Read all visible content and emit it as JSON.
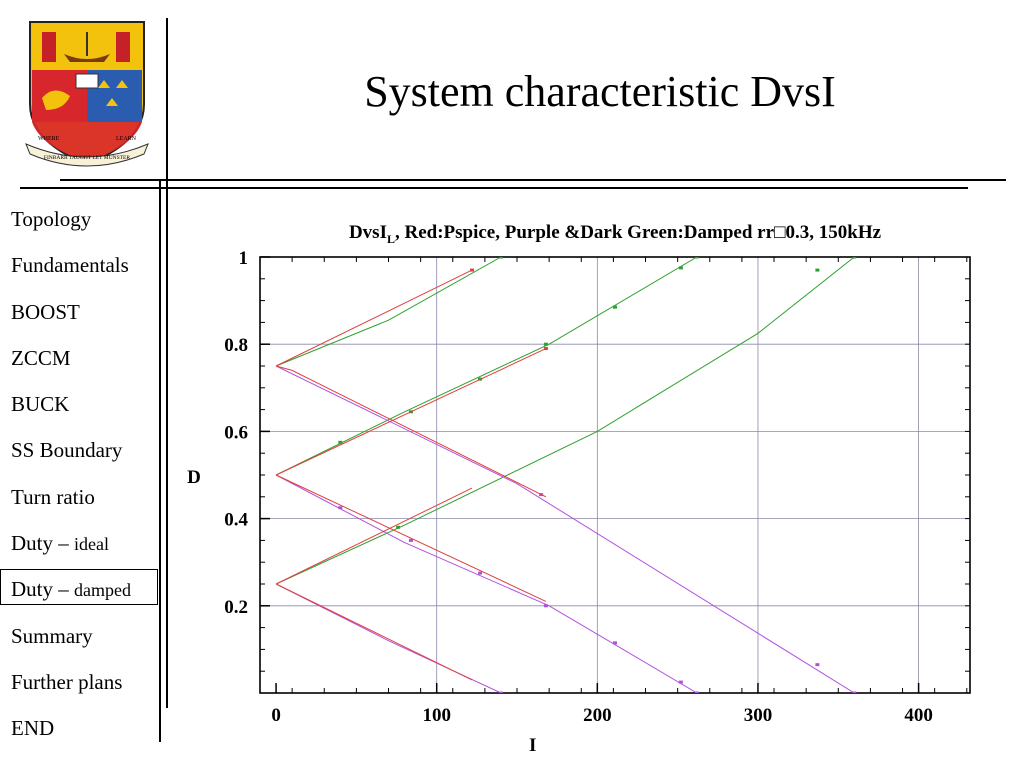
{
  "slide": {
    "title": "System characteristic DvsI",
    "crest": {
      "motto_left": "WHERE",
      "motto_right": "LEARN",
      "motto_bottom": "FINBARR TAUGHT LET MUNSTER"
    }
  },
  "nav": {
    "items": [
      {
        "label": "Topology",
        "suffix": "",
        "active": false
      },
      {
        "label": "Fundamentals",
        "suffix": "",
        "active": false
      },
      {
        "label": "BOOST",
        "suffix": "",
        "active": false
      },
      {
        "label": "ZCCM",
        "suffix": "",
        "active": false
      },
      {
        "label": "BUCK",
        "suffix": "",
        "active": false
      },
      {
        "label": "SS Boundary",
        "suffix": "",
        "active": false
      },
      {
        "label": "Turn ratio",
        "suffix": "",
        "active": false
      },
      {
        "label": "Duty – ",
        "suffix": "ideal",
        "active": false
      },
      {
        "label": "Duty – ",
        "suffix": "damped",
        "active": true
      },
      {
        "label": "Summary",
        "suffix": "",
        "active": false
      },
      {
        "label": "Further plans",
        "suffix": "",
        "active": false
      },
      {
        "label": "END",
        "suffix": "",
        "active": false
      }
    ]
  },
  "chart_data": {
    "type": "line",
    "title_main": "DvsI",
    "title_sub": "L",
    "title_rest": ", Red:Pspice, Purple &Dark Green:Damped rr□0.3, 150kHz",
    "xlabel": "I",
    "ylabel": "D",
    "xlim": [
      -10,
      432
    ],
    "ylim": [
      0,
      1
    ],
    "xticks": [
      0,
      100,
      200,
      300,
      400
    ],
    "yticks": [
      0.2,
      0.4,
      0.6,
      0.8,
      1
    ],
    "ytick_labels": [
      "0.2",
      "0.4",
      "0.6",
      "0.8",
      "1"
    ],
    "grid": true,
    "colors": {
      "pspice": "#e04040",
      "rising": "#2ea02e",
      "falling": "#b050e0",
      "grid": "#8a8aaa"
    },
    "series": [
      {
        "group": "rising",
        "color": "#2ea02e",
        "points": [
          [
            0,
            0.75
          ],
          [
            70,
            0.855
          ],
          [
            140,
            1.0
          ]
        ],
        "markers": [
          [
            140,
            1.0
          ]
        ]
      },
      {
        "group": "rising",
        "color": "#2ea02e",
        "points": [
          [
            0,
            0.5
          ],
          [
            80,
            0.645
          ],
          [
            170,
            0.8
          ],
          [
            262,
            1.0
          ]
        ],
        "markers": [
          [
            40,
            0.575
          ],
          [
            84,
            0.645
          ],
          [
            127,
            0.72
          ],
          [
            168,
            0.8
          ],
          [
            211,
            0.885
          ],
          [
            252,
            0.975
          ],
          [
            262,
            1.0
          ]
        ]
      },
      {
        "group": "rising",
        "color": "#2ea02e",
        "points": [
          [
            0,
            0.25
          ],
          [
            80,
            0.385
          ],
          [
            200,
            0.6
          ],
          [
            300,
            0.825
          ],
          [
            360,
            1.0
          ]
        ],
        "markers": [
          [
            76,
            0.38
          ],
          [
            337,
            0.97
          ],
          [
            360,
            1.0
          ]
        ]
      },
      {
        "group": "falling",
        "color": "#b050e0",
        "points": [
          [
            0,
            0.75
          ],
          [
            150,
            0.48
          ],
          [
            360,
            0.0
          ]
        ],
        "markers": [
          [
            165,
            0.455
          ],
          [
            337,
            0.065
          ],
          [
            360,
            0.0
          ]
        ]
      },
      {
        "group": "falling",
        "color": "#b050e0",
        "points": [
          [
            0,
            0.5
          ],
          [
            80,
            0.345
          ],
          [
            170,
            0.2
          ],
          [
            262,
            0.0
          ]
        ],
        "markers": [
          [
            40,
            0.425
          ],
          [
            84,
            0.35
          ],
          [
            127,
            0.275
          ],
          [
            168,
            0.2
          ],
          [
            211,
            0.115
          ],
          [
            252,
            0.025
          ],
          [
            262,
            0.0
          ]
        ]
      },
      {
        "group": "falling",
        "color": "#b050e0",
        "points": [
          [
            0,
            0.25
          ],
          [
            70,
            0.12
          ],
          [
            140,
            0.0
          ]
        ],
        "markers": [
          [
            140,
            0.0
          ]
        ]
      },
      {
        "group": "pspice",
        "color": "#e04040",
        "points": [
          [
            0,
            0.75
          ],
          [
            122,
            0.97
          ]
        ],
        "markers": [
          [
            122,
            0.97
          ]
        ]
      },
      {
        "group": "pspice",
        "color": "#e04040",
        "points": [
          [
            0,
            0.75
          ],
          [
            10,
            0.74
          ],
          [
            168,
            0.45
          ]
        ],
        "markers": []
      },
      {
        "group": "pspice",
        "color": "#e04040",
        "points": [
          [
            0,
            0.5
          ],
          [
            168,
            0.79
          ]
        ],
        "markers": [
          [
            168,
            0.79
          ]
        ]
      },
      {
        "group": "pspice",
        "color": "#e04040",
        "points": [
          [
            0,
            0.5
          ],
          [
            168,
            0.21
          ]
        ],
        "markers": []
      },
      {
        "group": "pspice",
        "color": "#e04040",
        "points": [
          [
            0,
            0.25
          ],
          [
            122,
            0.03
          ]
        ],
        "markers": []
      },
      {
        "group": "pspice",
        "color": "#e04040",
        "points": [
          [
            0,
            0.25
          ],
          [
            122,
            0.47
          ]
        ],
        "markers": []
      }
    ]
  }
}
